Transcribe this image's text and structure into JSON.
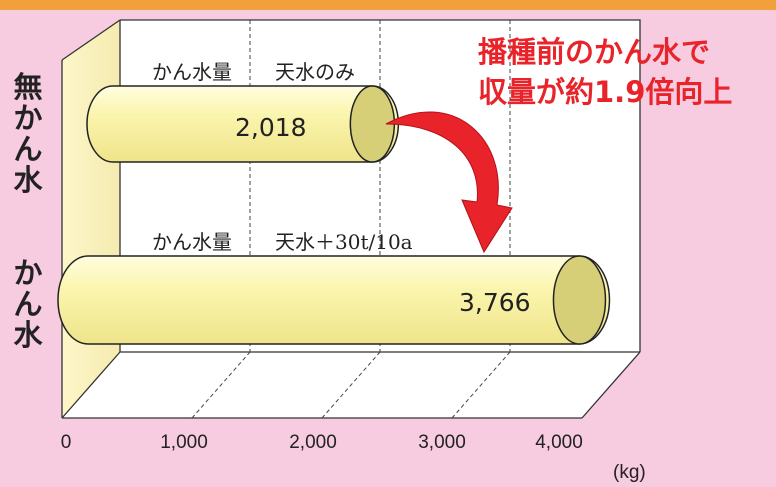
{
  "chart_data": {
    "type": "bar",
    "orientation": "horizontal",
    "categories": [
      "無かん水",
      "かん水"
    ],
    "values": [
      2018,
      3766
    ],
    "value_labels": [
      "2,018",
      "3,766"
    ],
    "bar_annotations": [
      {
        "label": "かん水量",
        "detail": "天水のみ"
      },
      {
        "label": "かん水量",
        "detail": "天水＋30t/10a"
      }
    ],
    "x_ticks": [
      "0",
      "1,000",
      "2,000",
      "3,000",
      "4,000"
    ],
    "xlim": [
      0,
      4000
    ],
    "x_unit": "(kg)",
    "grid": true,
    "callout": "播種前のかん水で\n収量が約1.9倍向上",
    "colors": {
      "background": "#f7cbe0",
      "bar": "#f8f4a8",
      "bar_end": "#d6cf78",
      "arrow": "#e8232a",
      "callout": "#e8232a"
    }
  }
}
